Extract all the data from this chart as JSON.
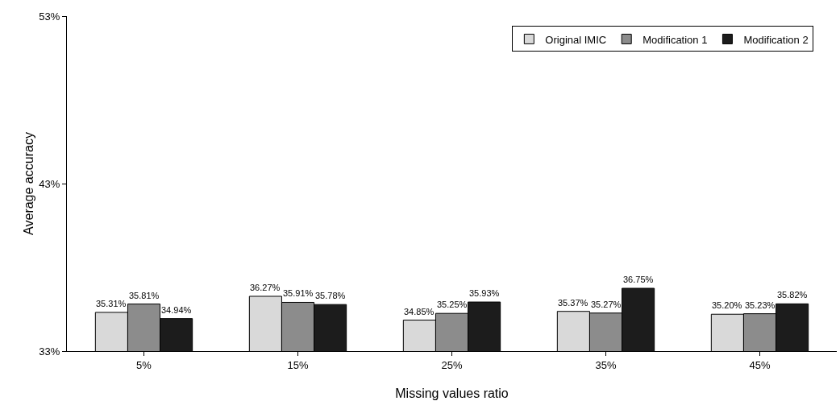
{
  "chart_data": {
    "type": "bar",
    "xlabel": "Missing values ratio",
    "ylabel": "Average accuracy",
    "categories": [
      "5%",
      "15%",
      "25%",
      "35%",
      "45%"
    ],
    "series": [
      {
        "name": "Original IMIC",
        "color": "#d9d9d9",
        "values": [
          35.31,
          36.27,
          34.85,
          35.37,
          35.2
        ],
        "value_labels": [
          "35.31%",
          "36.27%",
          "34.85%",
          "35.37%",
          "35.20%"
        ]
      },
      {
        "name": "Modification 1",
        "color": "#8c8c8c",
        "values": [
          35.81,
          35.91,
          35.25,
          35.27,
          35.23
        ],
        "value_labels": [
          "35.81%",
          "35.91%",
          "35.25%",
          "35.27%",
          "35.23%"
        ]
      },
      {
        "name": "Modification 2",
        "color": "#1c1c1c",
        "values": [
          34.94,
          35.78,
          35.93,
          36.75,
          35.82
        ],
        "value_labels": [
          "34.94%",
          "35.78%",
          "35.93%",
          "36.75%",
          "35.82%"
        ]
      }
    ],
    "ylim": [
      33,
      53
    ],
    "yticks": [
      {
        "value": 33,
        "label": "33%"
      },
      {
        "value": 43,
        "label": "43%"
      },
      {
        "value": 53,
        "label": "53%"
      }
    ],
    "grid": false,
    "legend": "top right"
  }
}
